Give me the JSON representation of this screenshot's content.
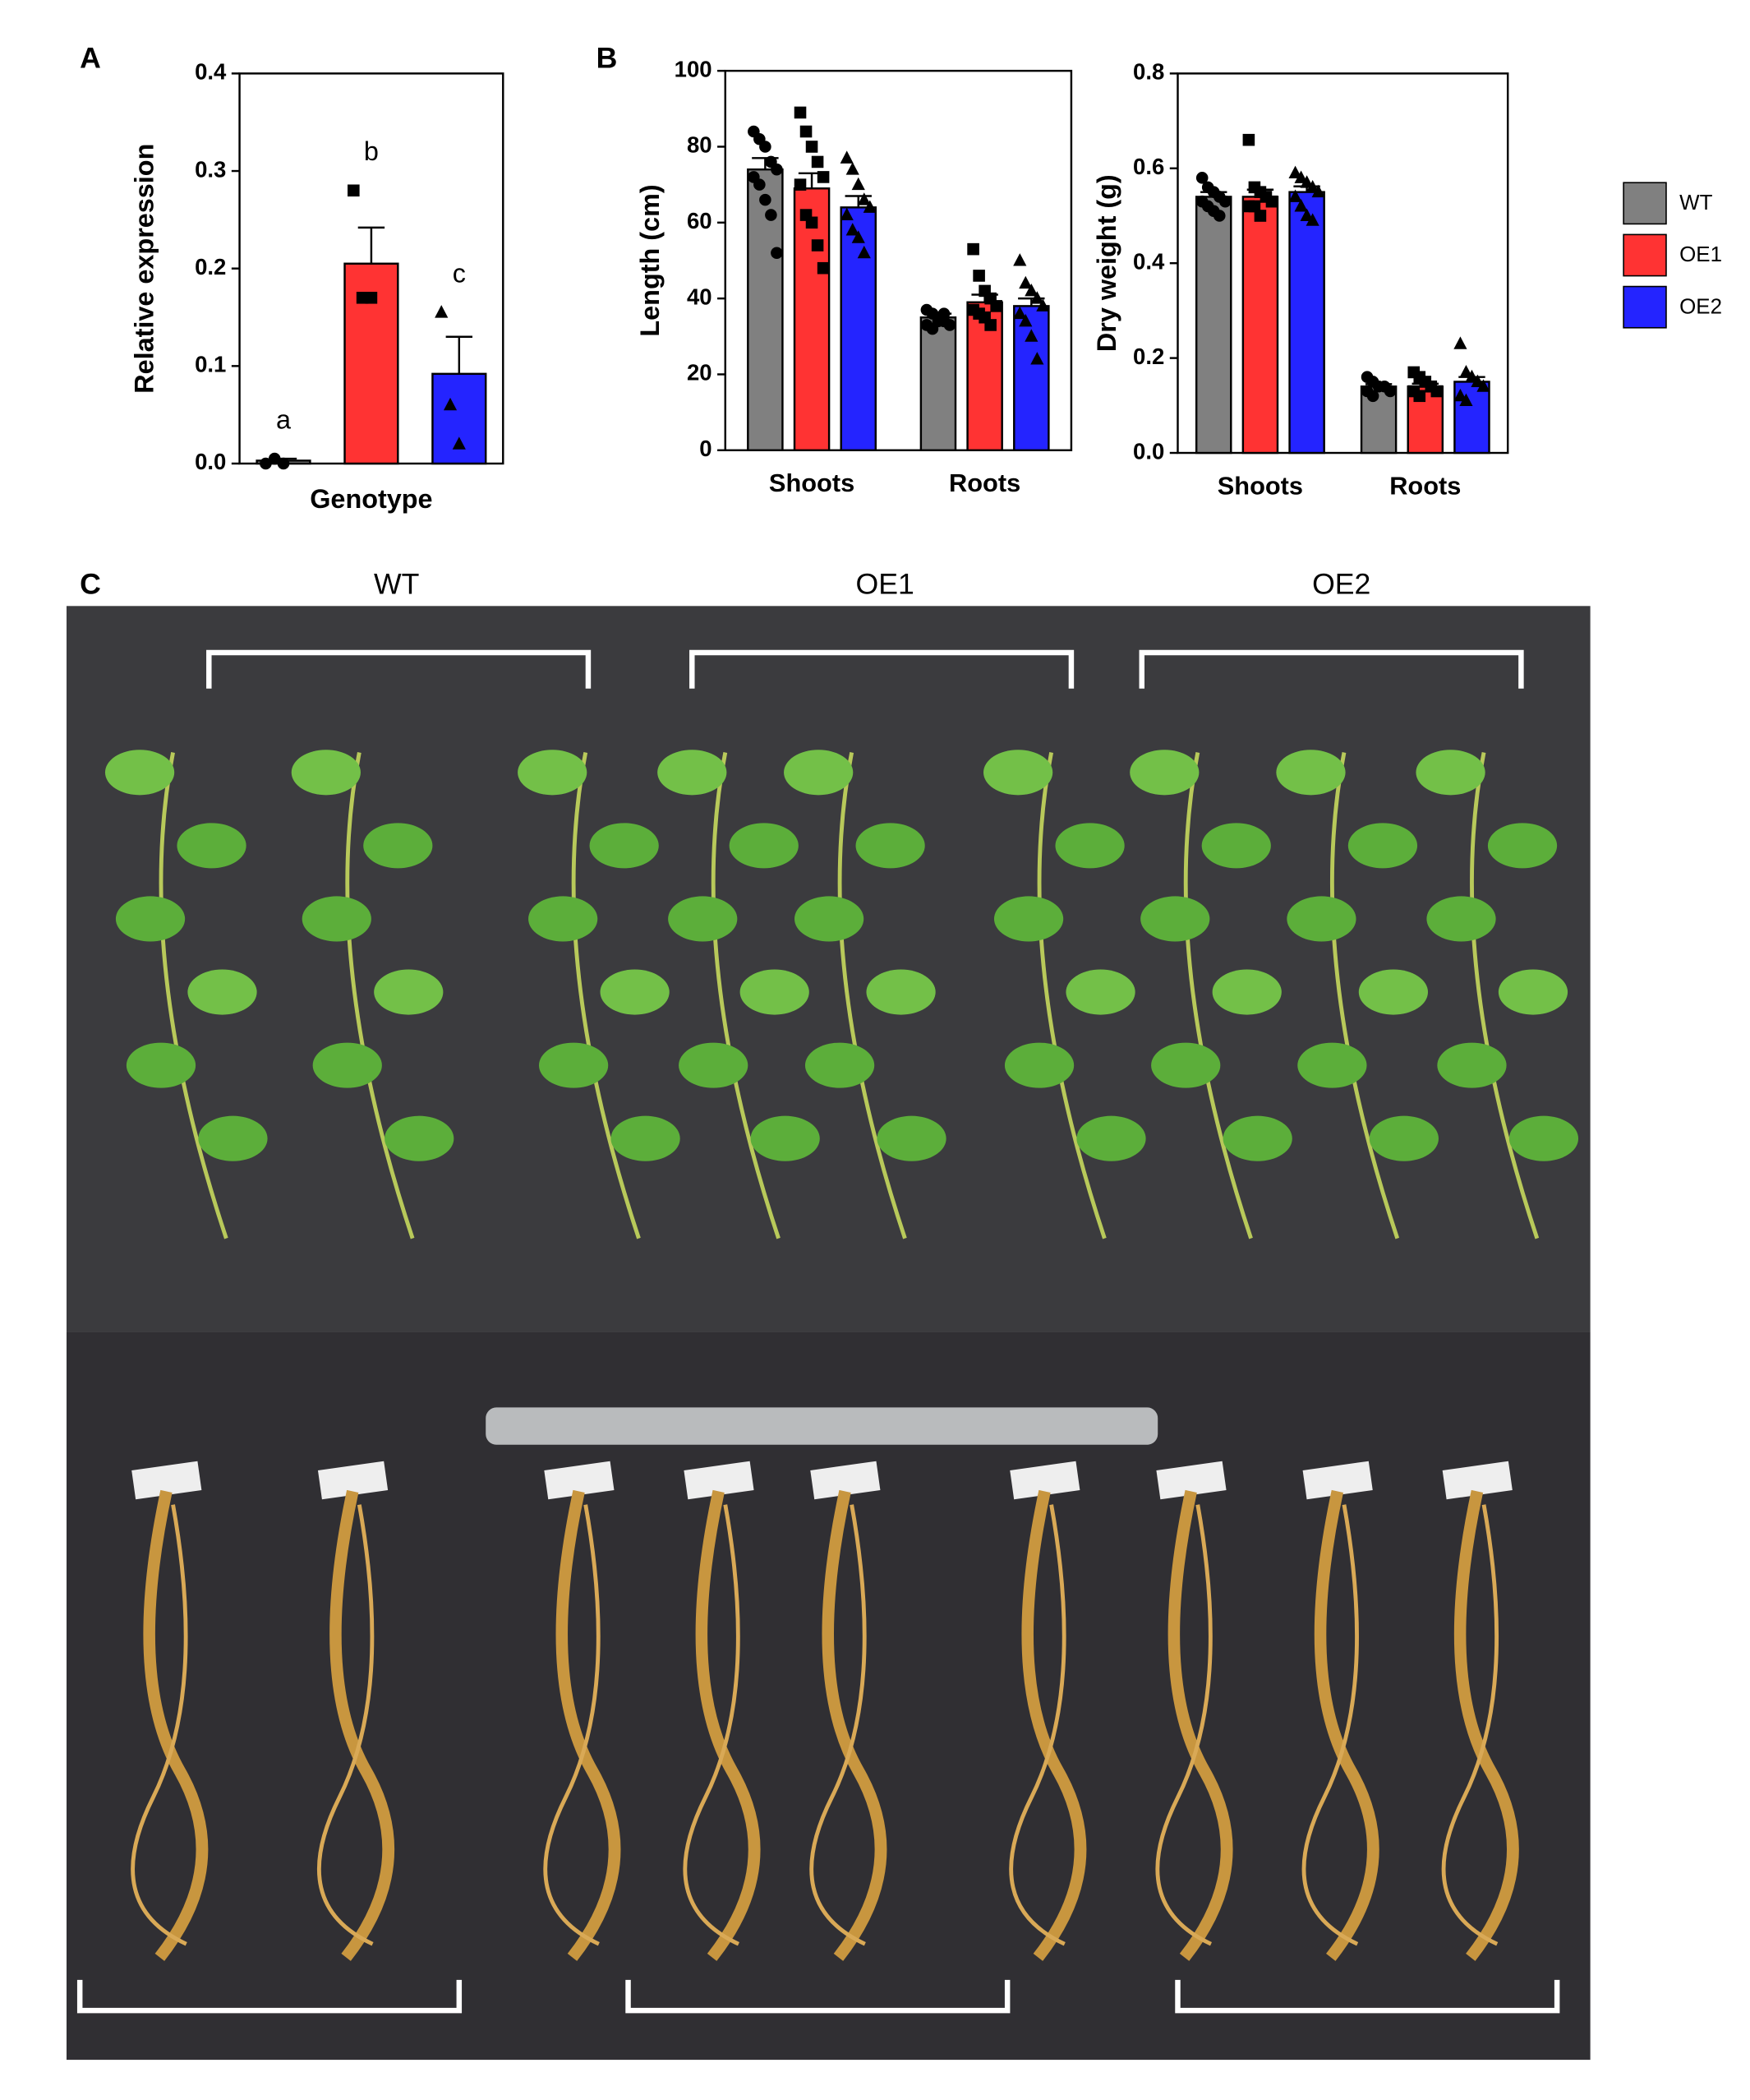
{
  "panels": [
    "A",
    "B",
    "C"
  ],
  "photo_labels": [
    "WT",
    "OE1",
    "OE2"
  ],
  "chart_data": [
    {
      "type": "bar",
      "ylabel": "Relative expression",
      "xlabel": "Genotype",
      "categories": [
        null,
        null,
        null
      ],
      "values": [
        0.003,
        0.205,
        0.092
      ],
      "errors": [
        0.002,
        0.037,
        0.038
      ],
      "colors": [
        "#808080",
        "#ff3333",
        "#2424ff"
      ],
      "annotations": [
        "a",
        "b",
        "c"
      ],
      "points": [
        [
          0.0,
          0.005,
          0.0
        ],
        [
          0.28,
          0.17,
          0.17
        ],
        [
          0.155,
          0.06,
          0.02
        ]
      ],
      "ylim": [
        0,
        0.4
      ],
      "yticks": [
        {
          "value": 0,
          "label": "0.0"
        },
        0.1,
        0.2,
        0.3,
        0.4
      ]
    },
    {
      "type": "grouped_bar",
      "ylabel": "Length (cm)",
      "categories": [
        "Shoots",
        "Roots"
      ],
      "series": [
        {
          "color": "#808080",
          "values": [
            74,
            35
          ],
          "errors": [
            3,
            1
          ],
          "points": [
            [
              84,
              82,
              80,
              76,
              74,
              72,
              70,
              66,
              62,
              52
            ],
            [
              37,
              36,
              35,
              34,
              33,
              33,
              32,
              34,
              36
            ]
          ]
        },
        {
          "color": "#ff3333",
          "values": [
            69,
            39
          ],
          "errors": [
            4,
            2
          ],
          "points": [
            [
              89,
              84,
              80,
              76,
              72,
              70,
              62,
              60,
              54,
              48
            ],
            [
              53,
              46,
              42,
              40,
              38,
              37,
              36,
              35,
              33
            ]
          ]
        },
        {
          "color": "#2424ff",
          "values": [
            64,
            38
          ],
          "errors": [
            3,
            2
          ],
          "points": [
            [
              77,
              74,
              70,
              66,
              64,
              62,
              58,
              56,
              52
            ],
            [
              50,
              44,
              42,
              40,
              38,
              36,
              34,
              30,
              24
            ]
          ]
        }
      ],
      "ylim": [
        0,
        100
      ],
      "yticks": [
        0,
        20,
        40,
        60,
        80,
        100
      ]
    },
    {
      "type": "grouped_bar",
      "ylabel": "Dry weight (g)",
      "categories": [
        "Shoots",
        "Roots"
      ],
      "series": [
        {
          "name": "WT",
          "color": "#808080",
          "values": [
            0.54,
            0.14
          ],
          "errors": [
            0.01,
            0.005
          ],
          "points": [
            [
              0.58,
              0.56,
              0.55,
              0.54,
              0.53,
              0.53,
              0.52,
              0.51,
              0.5
            ],
            [
              0.16,
              0.15,
              0.14,
              0.14,
              0.13,
              0.13,
              0.12
            ]
          ]
        },
        {
          "name": "OE1",
          "color": "#ff3333",
          "values": [
            0.54,
            0.14
          ],
          "errors": [
            0.015,
            0.006
          ],
          "points": [
            [
              0.66,
              0.56,
              0.55,
              0.54,
              0.53,
              0.52,
              0.52,
              0.5
            ],
            [
              0.17,
              0.16,
              0.15,
              0.14,
              0.13,
              0.13,
              0.12
            ]
          ]
        },
        {
          "name": "OE2",
          "color": "#2424ff",
          "values": [
            0.55,
            0.15
          ],
          "errors": [
            0.012,
            0.01
          ],
          "points": [
            [
              0.59,
              0.58,
              0.57,
              0.56,
              0.55,
              0.54,
              0.52,
              0.5,
              0.49
            ],
            [
              0.23,
              0.17,
              0.16,
              0.15,
              0.14,
              0.12,
              0.11
            ]
          ]
        }
      ],
      "ylim": [
        0,
        0.8
      ],
      "yticks": [
        {
          "value": 0,
          "label": "0.0"
        },
        0.2,
        0.4,
        0.6,
        0.8
      ]
    }
  ]
}
